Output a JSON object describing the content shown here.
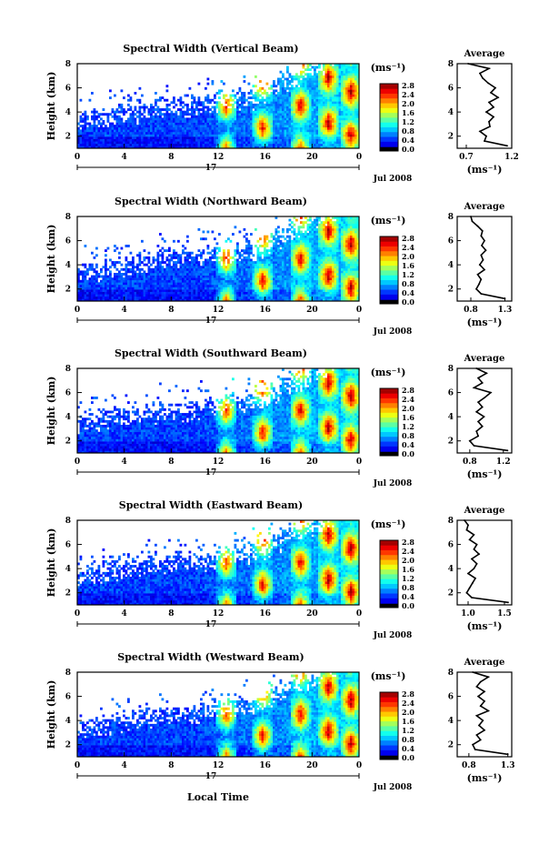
{
  "figure": {
    "xlabel_bottom": "Local Time"
  },
  "chart_data": [
    {
      "type": "heatmap",
      "title": "Spectral Width (Vertical Beam)",
      "ylabel": "Height (km)",
      "x_ticks": [
        "0",
        "4",
        "8",
        "12",
        "16",
        "20",
        "0"
      ],
      "y_ticks": [
        "2",
        "4",
        "6",
        "8"
      ],
      "xlim": [
        0,
        24
      ],
      "ylim": [
        1,
        8
      ],
      "day_label": "17",
      "date_label": "Jul 2008",
      "colorbar": {
        "unit": "(ms⁻¹)",
        "ticks": [
          "2.8",
          "2.4",
          "2.0",
          "1.6",
          "1.2",
          "0.8",
          "0.4",
          "0.0"
        ],
        "range": [
          0,
          2.8
        ]
      },
      "profile": {
        "title": "Average",
        "xlabel": "(ms⁻¹)",
        "x_ticks": [
          "0.7",
          "1.2"
        ],
        "xlim": [
          0.6,
          1.2
        ],
        "heights": [
          1.2,
          1.6,
          2.0,
          2.4,
          2.8,
          3.2,
          3.6,
          4.0,
          4.4,
          4.8,
          5.2,
          5.6,
          6.0,
          6.4,
          6.8,
          7.2,
          7.6,
          8.0
        ],
        "values": [
          1.15,
          0.9,
          0.92,
          0.85,
          0.96,
          0.95,
          1.0,
          0.92,
          1.0,
          0.95,
          1.05,
          0.97,
          1.02,
          0.94,
          0.88,
          0.85,
          0.95,
          0.72
        ]
      }
    },
    {
      "type": "heatmap",
      "title": "Spectral Width (Northward Beam)",
      "ylabel": "Height (km)",
      "x_ticks": [
        "0",
        "4",
        "8",
        "12",
        "16",
        "20",
        "0"
      ],
      "y_ticks": [
        "2",
        "4",
        "6",
        "8"
      ],
      "xlim": [
        0,
        24
      ],
      "ylim": [
        1,
        8
      ],
      "day_label": "17",
      "date_label": "Jul 2008",
      "colorbar": {
        "unit": "(ms⁻¹)",
        "ticks": [
          "2.8",
          "2.4",
          "2.0",
          "1.6",
          "1.2",
          "0.8",
          "0.4",
          "0.0"
        ],
        "range": [
          0,
          2.8
        ]
      },
      "profile": {
        "title": "Average",
        "xlabel": "(ms⁻¹)",
        "x_ticks": [
          "0.8",
          "1.3"
        ],
        "xlim": [
          0.6,
          1.4
        ],
        "heights": [
          1.2,
          1.6,
          2.0,
          2.4,
          2.8,
          3.2,
          3.6,
          4.0,
          4.4,
          4.8,
          5.2,
          5.6,
          6.0,
          6.4,
          6.8,
          7.2,
          7.6,
          8.0
        ],
        "values": [
          1.3,
          0.95,
          0.88,
          0.92,
          0.95,
          0.9,
          1.0,
          0.93,
          0.98,
          0.95,
          1.02,
          0.96,
          1.0,
          0.95,
          0.97,
          0.9,
          0.82,
          0.8
        ]
      }
    },
    {
      "type": "heatmap",
      "title": "Spectral Width (Southward Beam)",
      "ylabel": "Height (km)",
      "x_ticks": [
        "0",
        "4",
        "8",
        "12",
        "16",
        "20",
        "0"
      ],
      "y_ticks": [
        "2",
        "4",
        "6",
        "8"
      ],
      "xlim": [
        0,
        24
      ],
      "ylim": [
        1,
        8
      ],
      "day_label": "17",
      "date_label": "Jul 2008",
      "colorbar": {
        "unit": "(ms⁻¹)",
        "ticks": [
          "2.8",
          "2.4",
          "2.0",
          "1.6",
          "1.2",
          "0.8",
          "0.4",
          "0.0"
        ],
        "range": [
          0,
          2.8
        ]
      },
      "profile": {
        "title": "Average",
        "xlabel": "(ms⁻¹)",
        "x_ticks": [
          "0.8",
          "1.2"
        ],
        "xlim": [
          0.65,
          1.3
        ],
        "heights": [
          1.2,
          1.6,
          2.0,
          2.4,
          2.8,
          3.2,
          3.6,
          4.0,
          4.4,
          4.8,
          5.2,
          5.6,
          6.0,
          6.4,
          6.8,
          7.2,
          7.6,
          8.0
        ],
        "values": [
          1.25,
          0.85,
          0.8,
          0.9,
          0.88,
          0.95,
          0.9,
          0.97,
          0.88,
          0.95,
          0.9,
          0.98,
          1.05,
          0.85,
          0.95,
          0.9,
          1.0,
          0.88
        ]
      }
    },
    {
      "type": "heatmap",
      "title": "Spectral Width (Eastward Beam)",
      "ylabel": "Height (km)",
      "x_ticks": [
        "0",
        "4",
        "8",
        "12",
        "16",
        "20",
        "0"
      ],
      "y_ticks": [
        "2",
        "4",
        "6",
        "8"
      ],
      "xlim": [
        0,
        24
      ],
      "ylim": [
        1,
        8
      ],
      "day_label": "17",
      "date_label": "Jul 2008",
      "colorbar": {
        "unit": "(ms⁻¹)",
        "ticks": [
          "2.8",
          "2.4",
          "2.0",
          "1.6",
          "1.2",
          "0.8",
          "0.4",
          "0.0"
        ],
        "range": [
          0,
          2.8
        ]
      },
      "profile": {
        "title": "Average",
        "xlabel": "(ms⁻¹)",
        "x_ticks": [
          "1.0",
          "1.5"
        ],
        "xlim": [
          0.85,
          1.6
        ],
        "heights": [
          1.2,
          1.6,
          2.0,
          2.4,
          2.8,
          3.2,
          3.6,
          4.0,
          4.4,
          4.8,
          5.2,
          5.6,
          6.0,
          6.4,
          6.8,
          7.2,
          7.6,
          8.0
        ],
        "values": [
          1.55,
          1.05,
          0.98,
          1.02,
          1.06,
          1.1,
          1.0,
          1.08,
          1.12,
          1.05,
          1.15,
          1.08,
          1.12,
          1.02,
          1.08,
          0.98,
          1.0,
          0.95
        ]
      }
    },
    {
      "type": "heatmap",
      "title": "Spectral Width (Westward Beam)",
      "ylabel": "Height (km)",
      "x_ticks": [
        "0",
        "4",
        "8",
        "12",
        "16",
        "20",
        "0"
      ],
      "y_ticks": [
        "2",
        "4",
        "6",
        "8"
      ],
      "xlim": [
        0,
        24
      ],
      "ylim": [
        1,
        8
      ],
      "day_label": "17",
      "date_label": "Jul 2008",
      "colorbar": {
        "unit": "(ms⁻¹)",
        "ticks": [
          "2.8",
          "2.4",
          "2.0",
          "1.6",
          "1.2",
          "0.8",
          "0.4",
          "0.0"
        ],
        "range": [
          0,
          2.8
        ]
      },
      "profile": {
        "title": "Average",
        "xlabel": "(ms⁻¹)",
        "x_ticks": [
          "0.8",
          "1.3"
        ],
        "xlim": [
          0.65,
          1.35
        ],
        "heights": [
          1.2,
          1.6,
          2.0,
          2.4,
          2.8,
          3.2,
          3.6,
          4.0,
          4.4,
          4.8,
          5.2,
          5.6,
          6.0,
          6.4,
          6.8,
          7.2,
          7.6,
          8.0
        ],
        "values": [
          1.3,
          0.88,
          0.85,
          0.95,
          0.9,
          1.0,
          0.93,
          0.98,
          0.9,
          1.05,
          0.95,
          1.0,
          0.92,
          1.0,
          0.9,
          0.95,
          1.05,
          0.85
        ]
      }
    }
  ]
}
